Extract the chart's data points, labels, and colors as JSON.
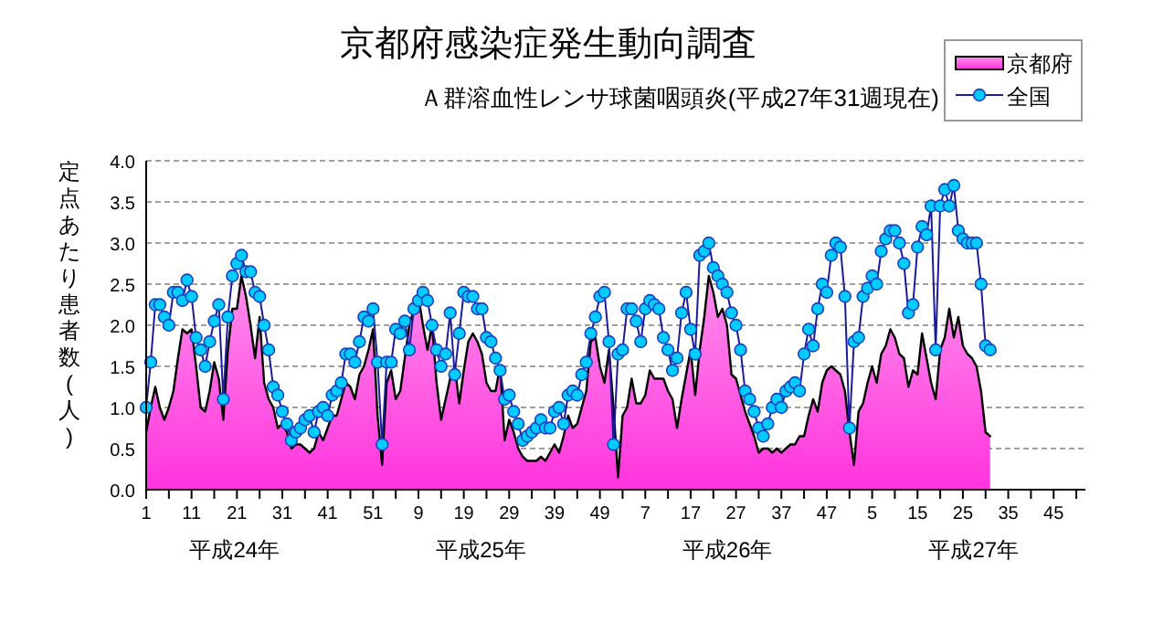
{
  "chart_data": {
    "type": "line",
    "title": "京都府感染症発生動向調査",
    "subtitle": "Ａ群溶血性レンサ球菌咽頭炎(平成27年31週現在)",
    "ylabel": "定点あたり患者数(人)",
    "annotations": [
      "平成24年",
      "平成25年",
      "平成26年",
      "平成27年"
    ],
    "categories": [
      "1",
      null,
      null,
      null,
      null,
      null,
      null,
      null,
      null,
      null,
      "11",
      null,
      null,
      null,
      null,
      null,
      null,
      null,
      null,
      null,
      "21",
      null,
      null,
      null,
      null,
      null,
      null,
      null,
      null,
      null,
      "31",
      null,
      null,
      null,
      null,
      null,
      null,
      null,
      null,
      null,
      "41",
      null,
      null,
      null,
      null,
      null,
      null,
      null,
      null,
      null,
      "51",
      null,
      null,
      null,
      null,
      null,
      null,
      null,
      null,
      null,
      "9",
      null,
      null,
      null,
      null,
      null,
      null,
      null,
      null,
      null,
      "19",
      null,
      null,
      null,
      null,
      null,
      null,
      null,
      null,
      null,
      "29",
      null,
      null,
      null,
      null,
      null,
      null,
      null,
      null,
      null,
      "39",
      null,
      null,
      null,
      null,
      null,
      null,
      null,
      null,
      null,
      "49",
      null,
      null,
      null,
      null,
      null,
      null,
      null,
      null,
      null,
      "7",
      null,
      null,
      null,
      null,
      null,
      null,
      null,
      null,
      null,
      "17",
      null,
      null,
      null,
      null,
      null,
      null,
      null,
      null,
      null,
      "27",
      null,
      null,
      null,
      null,
      null,
      null,
      null,
      null,
      null,
      "37",
      null,
      null,
      null,
      null,
      null,
      null,
      null,
      null,
      null,
      "47",
      null,
      null,
      null,
      null,
      null,
      null,
      null,
      null,
      null,
      "5",
      null,
      null,
      null,
      null,
      null,
      null,
      null,
      null,
      null,
      "15",
      null,
      null,
      null,
      null,
      null,
      null,
      null,
      null,
      null,
      "25",
      null,
      null,
      null,
      null,
      null,
      null,
      null,
      null,
      null,
      "35",
      null,
      null,
      null,
      null,
      null,
      null,
      null,
      null,
      null,
      "45",
      null,
      null,
      null,
      null,
      null,
      null,
      null
    ],
    "series": [
      {
        "name": "京都府",
        "type": "area",
        "color": "#ff33dd",
        "values": [
          0.7,
          1.0,
          1.25,
          1.0,
          0.85,
          1.0,
          1.2,
          1.6,
          1.95,
          1.9,
          1.95,
          1.5,
          1.0,
          0.95,
          1.2,
          1.55,
          1.35,
          0.85,
          1.7,
          2.2,
          2.2,
          2.6,
          2.35,
          2.0,
          1.6,
          2.1,
          1.3,
          1.1,
          1.0,
          0.75,
          0.8,
          0.7,
          0.5,
          0.55,
          0.55,
          0.5,
          0.45,
          0.5,
          0.7,
          0.6,
          0.75,
          0.9,
          0.9,
          1.1,
          1.3,
          1.25,
          1.1,
          1.4,
          1.5,
          1.7,
          1.95,
          0.9,
          0.3,
          1.3,
          1.45,
          1.1,
          1.2,
          1.6,
          2.0,
          2.2,
          2.35,
          2.0,
          1.7,
          2.0,
          1.3,
          0.85,
          1.1,
          1.35,
          1.5,
          1.05,
          1.45,
          1.8,
          1.9,
          1.8,
          1.65,
          1.3,
          1.2,
          1.2,
          1.5,
          0.6,
          0.85,
          0.7,
          0.5,
          0.4,
          0.35,
          0.35,
          0.35,
          0.4,
          0.35,
          0.45,
          0.55,
          0.45,
          0.65,
          0.9,
          0.75,
          0.8,
          1.0,
          1.2,
          1.8,
          1.85,
          1.5,
          1.3,
          1.7,
          1.0,
          0.15,
          0.9,
          1.0,
          1.35,
          1.05,
          1.05,
          1.15,
          1.45,
          1.35,
          1.35,
          1.35,
          1.2,
          1.1,
          0.75,
          1.1,
          1.4,
          1.7,
          1.15,
          1.7,
          2.1,
          2.6,
          2.4,
          2.1,
          2.2,
          2.0,
          1.4,
          1.35,
          1.15,
          0.95,
          0.8,
          0.65,
          0.45,
          0.5,
          0.5,
          0.45,
          0.5,
          0.45,
          0.5,
          0.55,
          0.55,
          0.65,
          0.65,
          0.9,
          1.1,
          0.95,
          1.3,
          1.45,
          1.5,
          1.45,
          1.4,
          1.2,
          0.7,
          0.3,
          0.95,
          1.05,
          1.3,
          1.5,
          1.3,
          1.65,
          1.75,
          1.95,
          1.85,
          1.65,
          1.6,
          1.25,
          1.45,
          1.4,
          1.9,
          1.6,
          1.3,
          1.1,
          1.7,
          1.85,
          2.2,
          1.85,
          2.1,
          1.75,
          1.65,
          1.6,
          1.5,
          1.2,
          0.7,
          0.65,
          null,
          null,
          null,
          null,
          null,
          null,
          null,
          null,
          null,
          null,
          null,
          null,
          null,
          null,
          null,
          null,
          null,
          null,
          null,
          null,
          null
        ]
      },
      {
        "name": "全国",
        "color": "#00ccff",
        "marker": "circle",
        "values": [
          1.0,
          1.55,
          2.25,
          2.25,
          2.1,
          2.0,
          2.4,
          2.4,
          2.3,
          2.55,
          2.35,
          1.85,
          1.7,
          1.5,
          1.8,
          2.05,
          2.25,
          1.1,
          2.1,
          2.6,
          2.75,
          2.85,
          2.65,
          2.65,
          2.4,
          2.35,
          2.0,
          1.7,
          1.25,
          1.15,
          0.95,
          0.8,
          0.6,
          0.7,
          0.75,
          0.85,
          0.9,
          0.7,
          0.95,
          1.0,
          0.9,
          1.15,
          1.2,
          1.3,
          1.65,
          1.65,
          1.55,
          1.8,
          2.1,
          2.05,
          2.2,
          1.55,
          0.55,
          1.55,
          1.55,
          1.95,
          1.9,
          2.05,
          1.7,
          2.2,
          2.3,
          2.4,
          2.3,
          2.0,
          1.7,
          1.5,
          1.65,
          2.15,
          1.4,
          1.9,
          2.4,
          2.35,
          2.35,
          2.2,
          2.2,
          1.85,
          1.8,
          1.6,
          1.45,
          1.1,
          1.15,
          0.95,
          0.8,
          0.6,
          0.65,
          0.7,
          0.75,
          0.85,
          0.75,
          0.75,
          0.95,
          1.0,
          0.8,
          1.15,
          1.2,
          1.15,
          1.4,
          1.55,
          1.9,
          2.1,
          2.35,
          2.4,
          1.8,
          0.55,
          1.65,
          1.7,
          2.2,
          2.2,
          2.05,
          1.8,
          2.2,
          2.3,
          2.25,
          2.2,
          1.85,
          1.7,
          1.45,
          1.6,
          2.15,
          2.4,
          1.95,
          1.65,
          2.85,
          2.9,
          3.0,
          2.7,
          2.6,
          2.5,
          2.4,
          2.15,
          2.0,
          1.7,
          1.2,
          1.1,
          0.95,
          0.75,
          0.65,
          0.8,
          1.0,
          1.1,
          1.0,
          1.2,
          1.25,
          1.3,
          1.2,
          1.65,
          1.95,
          1.75,
          2.2,
          2.5,
          2.4,
          2.85,
          3.0,
          2.95,
          2.35,
          0.75,
          1.8,
          1.85,
          2.35,
          2.45,
          2.6,
          2.5,
          2.9,
          3.05,
          3.15,
          3.15,
          3.0,
          2.75,
          2.15,
          2.25,
          2.95,
          3.2,
          3.1,
          3.45,
          1.7,
          3.45,
          3.65,
          3.45,
          3.7,
          3.15,
          3.05,
          3.0,
          3.0,
          3.0,
          2.5,
          1.75,
          1.7,
          null,
          null,
          null,
          null,
          null,
          null,
          null,
          null,
          null,
          null,
          null,
          null,
          null,
          null,
          null,
          null,
          null,
          null,
          null,
          null,
          null
        ]
      }
    ],
    "ylim": [
      0,
      4
    ],
    "yticks": [
      {
        "value": 0,
        "label": "0.0"
      },
      {
        "value": 0.5,
        "label": "0.5"
      },
      {
        "value": 1,
        "label": "1.0"
      },
      {
        "value": 1.5,
        "label": "1.5"
      },
      {
        "value": 2,
        "label": "2.0"
      },
      {
        "value": 2.5,
        "label": "2.5"
      },
      {
        "value": 3,
        "label": "3.0"
      },
      {
        "value": 3.5,
        "label": "3.5"
      },
      {
        "value": 4,
        "label": "4.0"
      }
    ],
    "grid": "y",
    "legend": "top right"
  }
}
